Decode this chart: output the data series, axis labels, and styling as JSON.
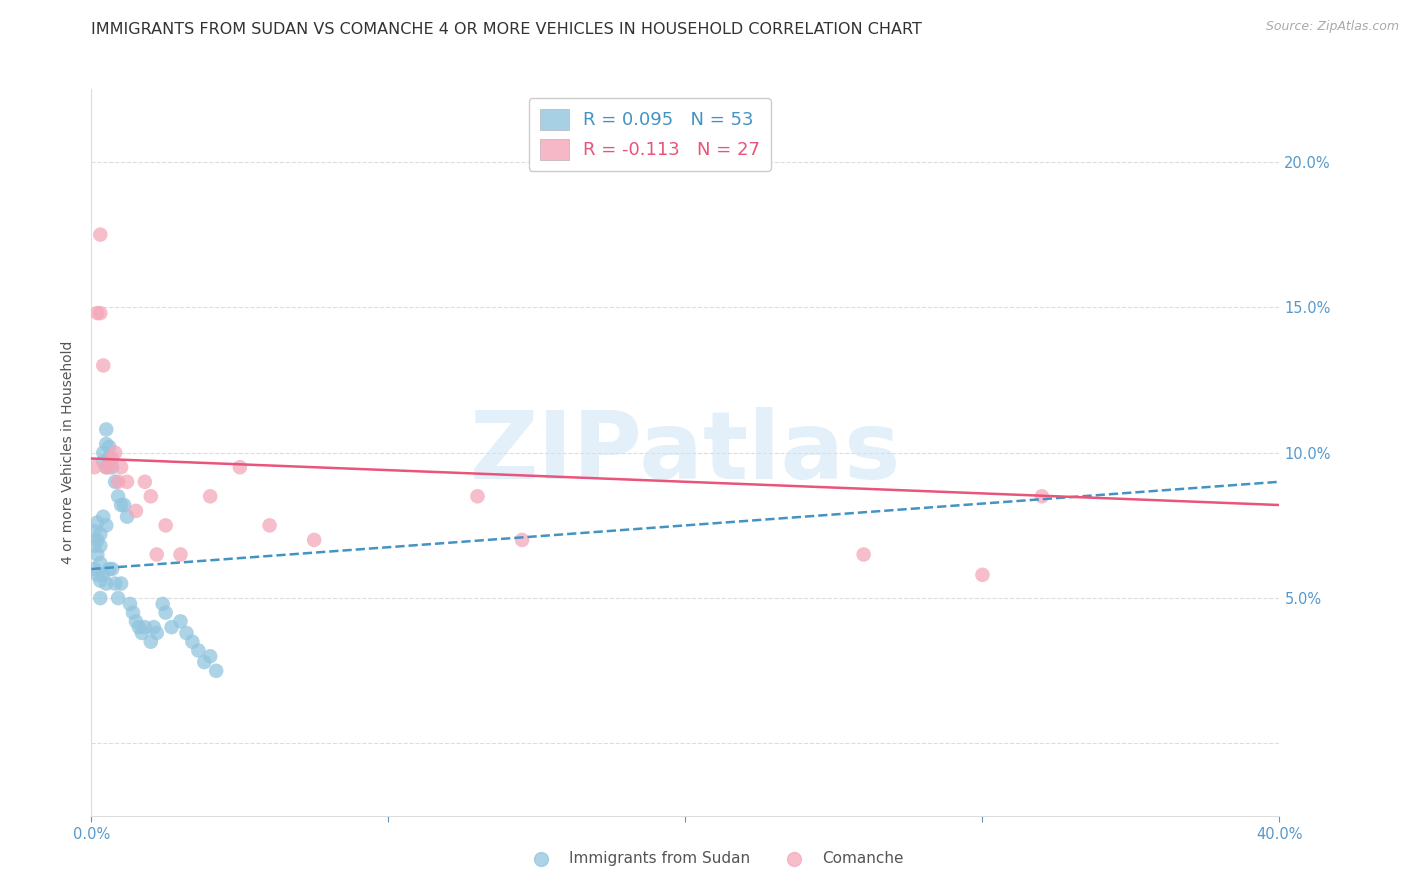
{
  "title": "IMMIGRANTS FROM SUDAN VS COMANCHE 4 OR MORE VEHICLES IN HOUSEHOLD CORRELATION CHART",
  "source": "Source: ZipAtlas.com",
  "ylabel": "4 or more Vehicles in Household",
  "xlim": [
    0.0,
    0.4
  ],
  "ylim": [
    -0.025,
    0.225
  ],
  "yticks": [
    0.0,
    0.05,
    0.1,
    0.15,
    0.2
  ],
  "xticks": [
    0.0,
    0.1,
    0.2,
    0.3,
    0.4
  ],
  "watermark_text": "ZIPatlas",
  "blue_color": "#92c5de",
  "pink_color": "#f4a7b9",
  "blue_line_color": "#4393c3",
  "pink_line_color": "#e8547a",
  "axis_tick_color": "#5599cc",
  "grid_color": "#dddddd",
  "title_color": "#333333",
  "title_fontsize": 11.5,
  "label_fontsize": 10,
  "tick_fontsize": 10.5,
  "legend_fontsize": 13,
  "source_fontsize": 9,
  "background_color": "#ffffff",
  "sudan_x": [
    0.001,
    0.001,
    0.001,
    0.002,
    0.002,
    0.002,
    0.002,
    0.003,
    0.003,
    0.003,
    0.003,
    0.003,
    0.004,
    0.004,
    0.004,
    0.004,
    0.005,
    0.005,
    0.005,
    0.005,
    0.005,
    0.006,
    0.006,
    0.006,
    0.007,
    0.007,
    0.008,
    0.008,
    0.009,
    0.009,
    0.01,
    0.01,
    0.011,
    0.012,
    0.013,
    0.014,
    0.015,
    0.016,
    0.017,
    0.018,
    0.02,
    0.021,
    0.022,
    0.024,
    0.025,
    0.027,
    0.03,
    0.032,
    0.034,
    0.036,
    0.038,
    0.04,
    0.042
  ],
  "sudan_y": [
    0.073,
    0.068,
    0.06,
    0.076,
    0.07,
    0.065,
    0.058,
    0.072,
    0.068,
    0.062,
    0.056,
    0.05,
    0.1,
    0.097,
    0.078,
    0.058,
    0.108,
    0.103,
    0.095,
    0.075,
    0.055,
    0.102,
    0.098,
    0.06,
    0.095,
    0.06,
    0.09,
    0.055,
    0.085,
    0.05,
    0.082,
    0.055,
    0.082,
    0.078,
    0.048,
    0.045,
    0.042,
    0.04,
    0.038,
    0.04,
    0.035,
    0.04,
    0.038,
    0.048,
    0.045,
    0.04,
    0.042,
    0.038,
    0.035,
    0.032,
    0.028,
    0.03,
    0.025
  ],
  "comanche_x": [
    0.001,
    0.002,
    0.003,
    0.003,
    0.004,
    0.005,
    0.006,
    0.007,
    0.008,
    0.009,
    0.01,
    0.012,
    0.015,
    0.018,
    0.02,
    0.022,
    0.025,
    0.03,
    0.04,
    0.05,
    0.06,
    0.075,
    0.13,
    0.145,
    0.26,
    0.3,
    0.32
  ],
  "comanche_y": [
    0.095,
    0.148,
    0.175,
    0.148,
    0.13,
    0.095,
    0.095,
    0.098,
    0.1,
    0.09,
    0.095,
    0.09,
    0.08,
    0.09,
    0.085,
    0.065,
    0.075,
    0.065,
    0.085,
    0.095,
    0.075,
    0.07,
    0.085,
    0.07,
    0.065,
    0.058,
    0.085
  ],
  "sudan_trend_x": [
    0.0,
    0.4
  ],
  "sudan_trend_y": [
    0.06,
    0.09
  ],
  "comanche_trend_x": [
    0.0,
    0.4
  ],
  "comanche_trend_y": [
    0.098,
    0.082
  ]
}
